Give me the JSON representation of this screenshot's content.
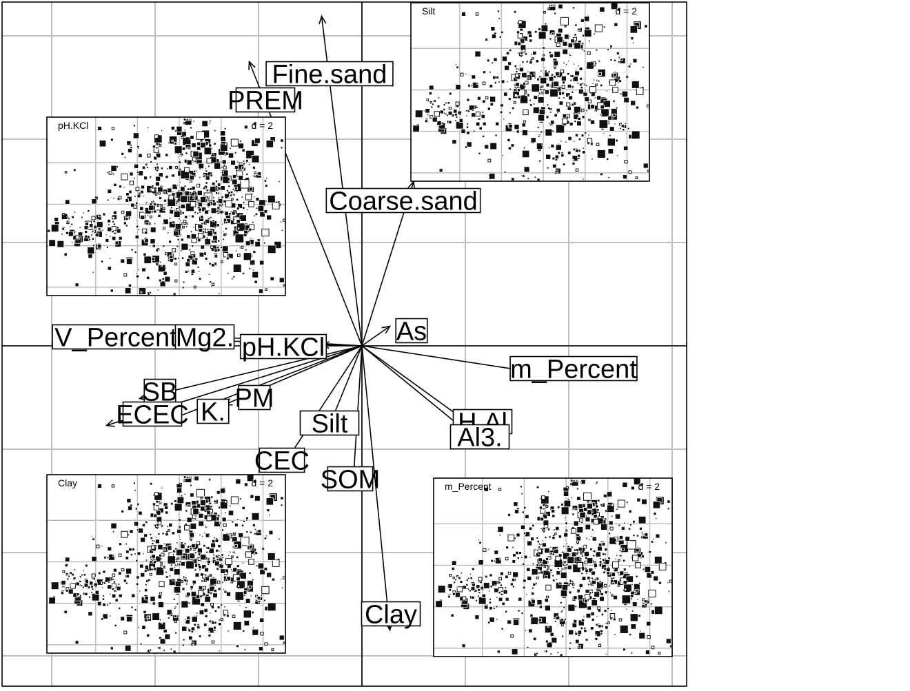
{
  "chart_data": {
    "type": "biplot",
    "main": {
      "grid": true,
      "arrows": [
        {
          "label": "Fine.sand",
          "x": -0.39,
          "y": 3.19
        },
        {
          "label": "PREM",
          "x": -1.09,
          "y": 2.75
        },
        {
          "label": "Coarse.sand",
          "x": 0.5,
          "y": 1.59
        },
        {
          "label": "As",
          "x": 0.27,
          "y": 0.19
        },
        {
          "label": "V_Percent",
          "x": -2.77,
          "y": 0.1
        },
        {
          "label": "Mg2.",
          "x": -1.47,
          "y": 0.09
        },
        {
          "label": "pH.KCl",
          "x": -0.39,
          "y": 0.01
        },
        {
          "label": "m_Percent",
          "x": 1.83,
          "y": -0.28
        },
        {
          "label": "SB",
          "x": -2.15,
          "y": -0.51
        },
        {
          "label": "K.",
          "x": -1.87,
          "y": -0.72
        },
        {
          "label": "ECEC",
          "x": -2.47,
          "y": -0.77
        },
        {
          "label": "PM",
          "x": -1.33,
          "y": -0.57
        },
        {
          "label": "Silt",
          "x": -0.31,
          "y": -0.76
        },
        {
          "label": "H.Al",
          "x": 1.16,
          "y": -0.84
        },
        {
          "label": "Al3.",
          "x": 1.16,
          "y": -0.95
        },
        {
          "label": "CEC",
          "x": -0.77,
          "y": -1.17
        },
        {
          "label": "SOM",
          "x": -0.09,
          "y": -1.4
        },
        {
          "label": "Clay",
          "x": 0.27,
          "y": -2.75
        }
      ]
    },
    "insets": [
      {
        "title": "pH.KCl",
        "scale_label": "d = 2",
        "point_density": "high"
      },
      {
        "title": "Silt",
        "scale_label": "d = 2",
        "point_density": "medium"
      },
      {
        "title": "Clay",
        "scale_label": "d = 2",
        "point_density": "high"
      },
      {
        "title": "m_Percent",
        "scale_label": "d = 2",
        "point_density": "high"
      }
    ],
    "colors": {
      "grid": "#bebebe",
      "ink": "#000000",
      "marker": "#111111"
    }
  }
}
